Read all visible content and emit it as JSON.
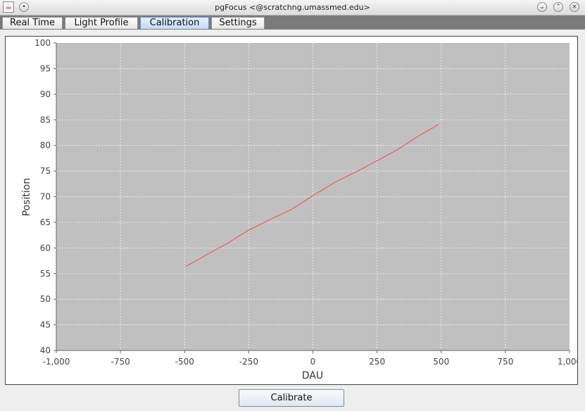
{
  "window": {
    "title": "pgFocus <@scratchng.umassmed.edu>",
    "app_icon": "java-cup-icon",
    "menu_icon": "circle-dot-icon",
    "controls": [
      "minimize-icon",
      "maximize-icon",
      "close-icon"
    ]
  },
  "tabs": [
    {
      "label": "Real Time",
      "active": false
    },
    {
      "label": "Light Profile",
      "active": false
    },
    {
      "label": "Calibration",
      "active": true
    },
    {
      "label": "Settings",
      "active": false
    }
  ],
  "chart_data": {
    "type": "line",
    "title": "",
    "xlabel": "DAU",
    "ylabel": "Position",
    "xlim": [
      -1000,
      1000
    ],
    "ylim": [
      40,
      100
    ],
    "xticks": [
      -1000,
      -750,
      -500,
      -250,
      0,
      250,
      500,
      750,
      1000
    ],
    "xtick_labels": [
      "-1,000",
      "-750",
      "-500",
      "-250",
      "0",
      "250",
      "500",
      "750",
      "1,000"
    ],
    "yticks": [
      40,
      45,
      50,
      55,
      60,
      65,
      70,
      75,
      80,
      85,
      90,
      95,
      100
    ],
    "ytick_labels": [
      "40",
      "45",
      "50",
      "55",
      "60",
      "65",
      "70",
      "75",
      "80",
      "85",
      "90",
      "95",
      "100"
    ],
    "grid": true,
    "colors": {
      "plot_background": "#c0c0c0",
      "line": "#ee5a5a",
      "grid": "#ffffff"
    },
    "series": [
      {
        "x": [
          -495,
          -410,
          -330,
          -250,
          -165,
          -80,
          0,
          85,
          170,
          250,
          330,
          410,
          490
        ],
        "y": [
          56.4,
          58.8,
          61.0,
          63.5,
          65.6,
          67.6,
          70.2,
          72.8,
          74.9,
          77.0,
          79.2,
          81.8,
          84.1
        ]
      }
    ]
  },
  "actions": {
    "calibrate_label": "Calibrate"
  }
}
